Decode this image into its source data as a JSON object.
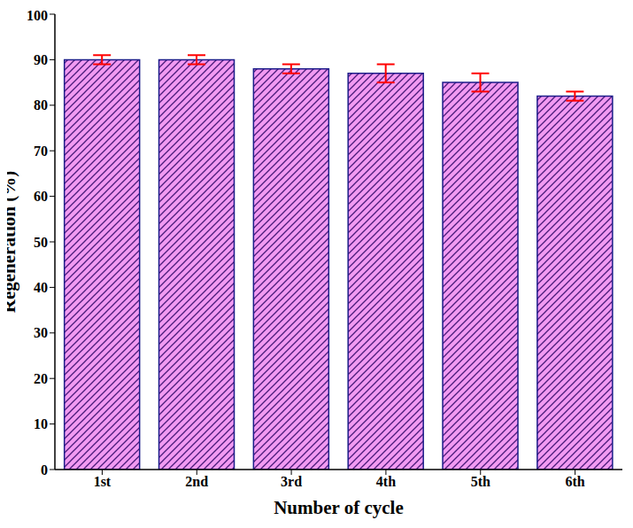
{
  "chart_data": {
    "type": "bar",
    "categories": [
      "1st",
      "2nd",
      "3rd",
      "4th",
      "5th",
      "6th"
    ],
    "values": [
      90,
      90,
      88,
      87,
      85,
      82
    ],
    "errors": [
      1,
      1,
      1,
      2,
      2,
      1
    ],
    "color": "#f29af2",
    "x_label": "Number of cycle",
    "y_label": "Regeneration (%)",
    "ylim": [
      0,
      100
    ],
    "yticks": [
      0,
      10,
      20,
      30,
      40,
      50,
      60,
      70,
      80,
      90,
      100
    ],
    "grid": false
  }
}
